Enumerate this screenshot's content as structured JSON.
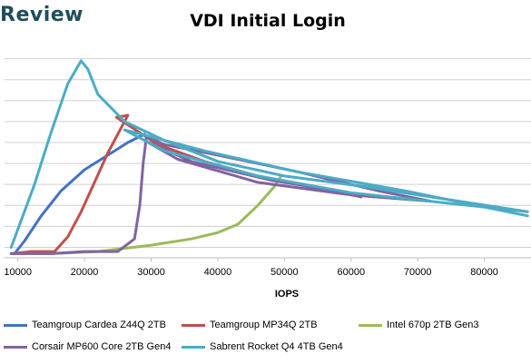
{
  "brand": {
    "text": "Review"
  },
  "chart_data": {
    "type": "line",
    "title": "VDI Initial Login",
    "xlabel": "IOPS",
    "ylabel": "",
    "xlim": [
      8000,
      87000
    ],
    "ylim": [
      0,
      11
    ],
    "x_ticks": [
      10000,
      20000,
      30000,
      40000,
      50000,
      60000,
      70000,
      80000
    ],
    "y_gridlines": [
      0.5,
      1.5,
      2.5,
      3.5,
      4.5,
      5.5,
      6.5,
      7.5,
      8.5,
      9.5
    ],
    "grid": true,
    "legend_position": "bottom",
    "series": [
      {
        "name": "Teamgroup Cardea Z44Q 2TB",
        "color": "#4472c4",
        "x": [
          9500,
          11000,
          13500,
          16500,
          20000,
          23500,
          26500,
          29000
        ],
        "y": [
          0.2,
          0.8,
          2.0,
          3.2,
          4.2,
          4.9,
          5.5,
          5.9
        ]
      },
      {
        "name": "Teamgroup MP34Q 2TB",
        "color": "#c0504d",
        "x": [
          9000,
          12000,
          15500,
          17500,
          19500,
          21500,
          23500,
          25500,
          26500,
          24800,
          31000,
          38000,
          46000,
          56000,
          61500
        ],
        "y": [
          0.2,
          0.3,
          0.3,
          1.0,
          2.2,
          3.6,
          5.0,
          6.2,
          6.8,
          6.7,
          5.4,
          4.6,
          3.9,
          3.3,
          2.9
        ]
      },
      {
        "name": "Intel 670p 2TB Gen3",
        "color": "#9bbb59",
        "x": [
          9000,
          15000,
          22000,
          30000,
          36000,
          40000,
          43000,
          46000,
          48500,
          49500
        ],
        "y": [
          0.2,
          0.2,
          0.3,
          0.6,
          0.9,
          1.2,
          1.6,
          2.5,
          3.4,
          3.9
        ]
      },
      {
        "name": "Corsair MP600 Core 2TB Gen4",
        "color": "#8064a2",
        "x": [
          9000,
          15000,
          20000,
          25000,
          27500,
          28300,
          28800,
          29300,
          32000,
          40000,
          52000,
          64000,
          72000,
          60000,
          46000,
          34000,
          29000,
          36000,
          48000,
          63500
        ],
        "y": [
          0.2,
          0.2,
          0.3,
          0.3,
          0.9,
          2.5,
          4.5,
          5.8,
          5.4,
          4.9,
          4.1,
          3.2,
          2.7,
          3.0,
          3.6,
          4.7,
          5.6,
          4.6,
          3.7,
          2.9
        ]
      },
      {
        "name": "Sabrent Rocket Q4 4TB Gen4",
        "color": "#4bacc6",
        "x": [
          9000,
          12500,
          15000,
          17500,
          19500,
          20500,
          22000,
          26000,
          32000,
          40000,
          50000,
          62000,
          72000,
          86500,
          60000,
          46000,
          32000,
          26000,
          38000,
          52000,
          68000,
          86500
        ],
        "y": [
          0.5,
          3.5,
          6.0,
          8.3,
          9.4,
          9.0,
          7.8,
          6.5,
          5.6,
          4.6,
          3.9,
          3.4,
          2.9,
          2.2,
          3.1,
          3.9,
          5.1,
          6.1,
          5.1,
          4.1,
          3.2,
          2.0
        ]
      }
    ]
  }
}
